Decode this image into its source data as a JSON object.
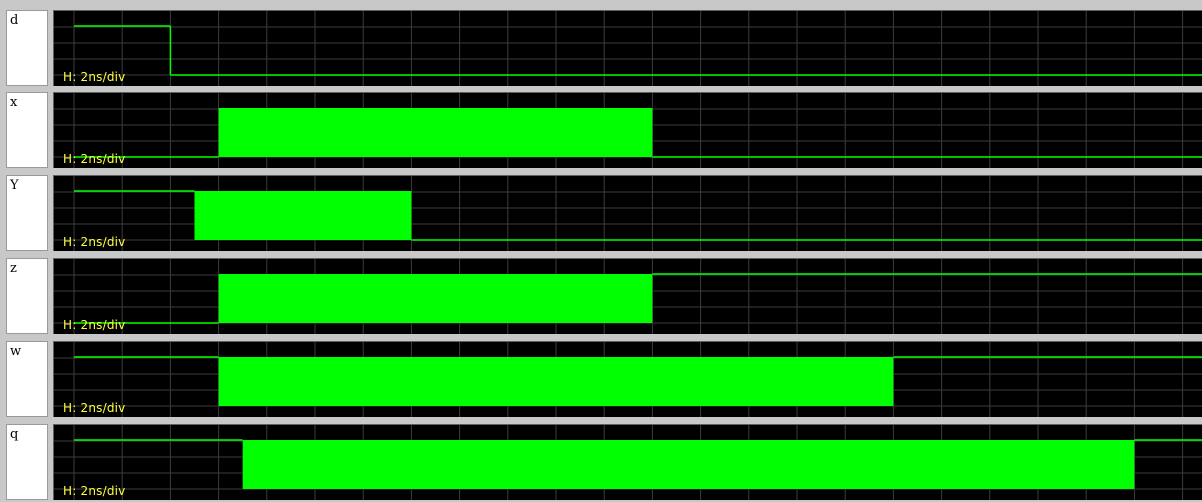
{
  "viewer": {
    "signal_color": "#00ff00",
    "grid_color": "#3c3c3c",
    "background": "#000000",
    "scale_color": "#ffff40"
  },
  "signals": [
    {
      "name": "d",
      "scale_label": "H: 2ns/div",
      "waveform": [
        {
          "t": 0,
          "state": "high"
        },
        {
          "t": 4,
          "state": "low"
        }
      ]
    },
    {
      "name": "x",
      "scale_label": "H: 2ns/div",
      "waveform": [
        {
          "t": 0,
          "state": "low"
        },
        {
          "t": 6,
          "state": "toggling"
        },
        {
          "t": 24,
          "state": "low"
        }
      ]
    },
    {
      "name": "Y",
      "scale_label": "H: 2ns/div",
      "waveform": [
        {
          "t": 0,
          "state": "high"
        },
        {
          "t": 5,
          "state": "toggling"
        },
        {
          "t": 14,
          "state": "low"
        }
      ]
    },
    {
      "name": "z",
      "scale_label": "H: 2ns/div",
      "waveform": [
        {
          "t": 0,
          "state": "low"
        },
        {
          "t": 6,
          "state": "toggling"
        },
        {
          "t": 24,
          "state": "high"
        }
      ]
    },
    {
      "name": "w",
      "scale_label": "H: 2ns/div",
      "waveform": [
        {
          "t": 0,
          "state": "high"
        },
        {
          "t": 6,
          "state": "toggling"
        },
        {
          "t": 34,
          "state": "high"
        }
      ]
    },
    {
      "name": "q",
      "scale_label": "H: 2ns/div",
      "waveform": [
        {
          "t": 0,
          "state": "high"
        },
        {
          "t": 7,
          "state": "toggling"
        },
        {
          "t": 44,
          "state": "high"
        }
      ]
    }
  ]
}
